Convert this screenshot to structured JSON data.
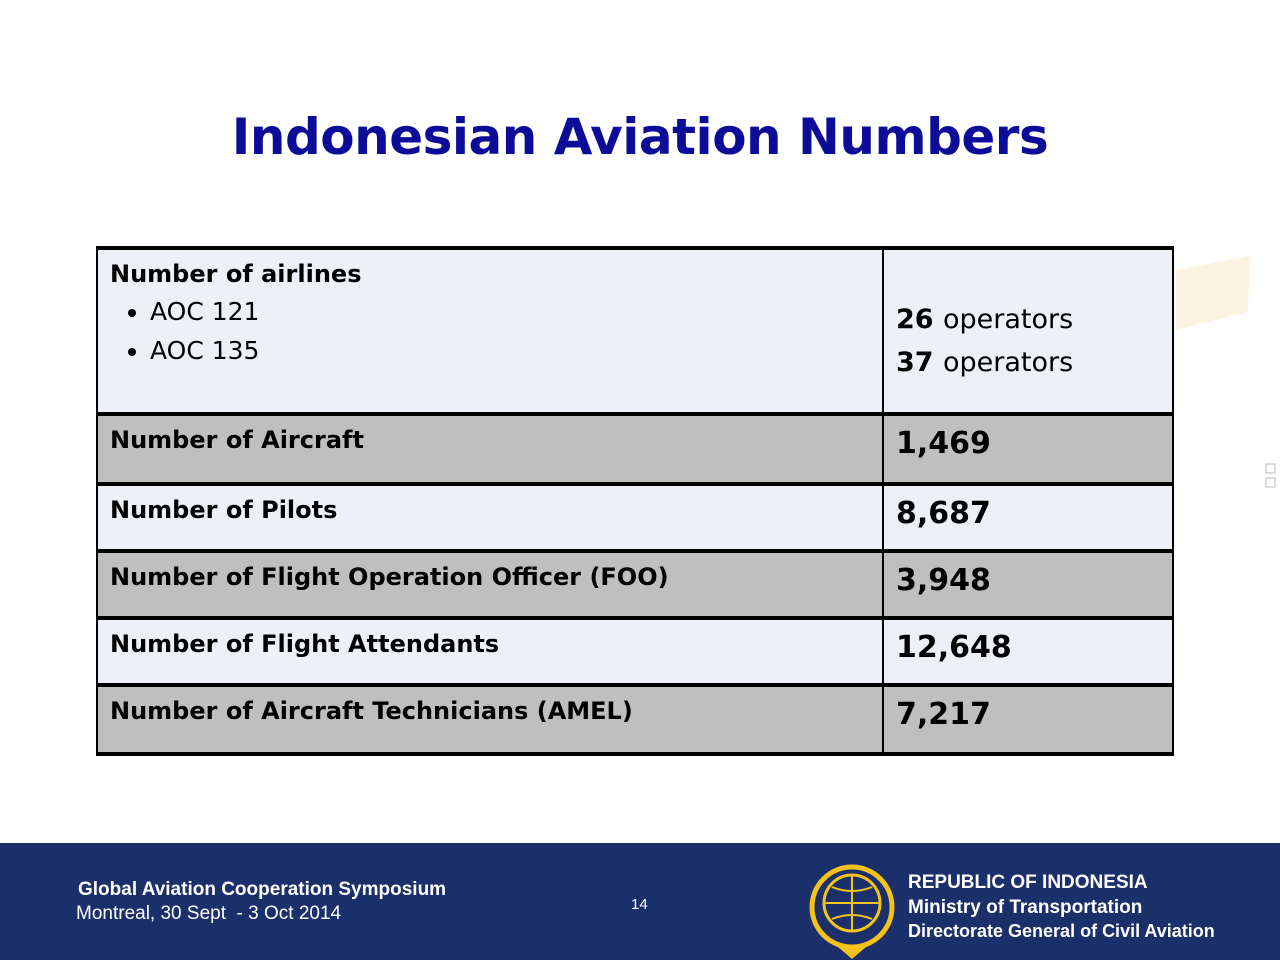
{
  "title": "Indonesian Aviation Numbers",
  "table": {
    "rows": [
      {
        "label": "Number of airlines",
        "items": [
          "AOC 121",
          "AOC 135"
        ],
        "values": [
          {
            "number": "26",
            "unit": "operators"
          },
          {
            "number": "37",
            "unit": "operators"
          }
        ]
      },
      {
        "label": "Number of Aircraft",
        "value": "1,469"
      },
      {
        "label": "Number of Pilots",
        "value": "8,687"
      },
      {
        "label": "Number of Flight Operation Officer (FOO)",
        "value": "3,948"
      },
      {
        "label": "Number of Flight Attendants",
        "value": "12,648"
      },
      {
        "label": "Number of Aircraft Technicians (AMEL)",
        "value": "7,217"
      }
    ]
  },
  "footer": {
    "event": "Global Aviation Cooperation Symposium",
    "location": "Montreal, 30 Sept  - 3 Oct 2014",
    "page": "14",
    "org": [
      "REPUBLIC OF INDONESIA",
      "Ministry of Transportation",
      "Directorate General of Civil Aviation"
    ]
  }
}
